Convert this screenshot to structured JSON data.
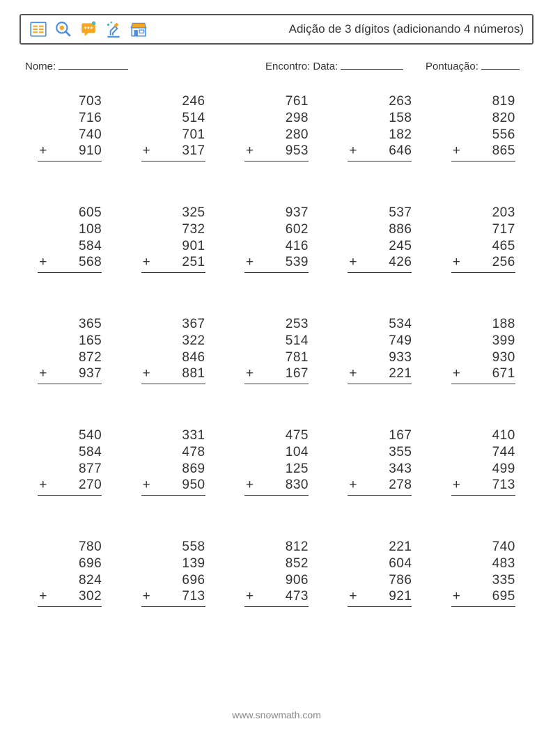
{
  "header": {
    "title": "Adição de 3 dígitos (adicionando 4 números)"
  },
  "labels": {
    "name": "Nome:",
    "date": "Encontro: Data:",
    "score": "Pontuação:"
  },
  "icon_colors": {
    "orange": "#f5a623",
    "blue": "#4a90e2",
    "teal": "#50b5b5",
    "frame": "#555555"
  },
  "style": {
    "font_color": "#333333",
    "border_color": "#555555",
    "background": "#ffffff",
    "problem_font_size": 19,
    "columns": 5,
    "rows": 5,
    "operator": "+"
  },
  "problems": [
    [
      {
        "n": [
          703,
          716,
          740,
          910
        ]
      },
      {
        "n": [
          246,
          514,
          701,
          317
        ]
      },
      {
        "n": [
          761,
          298,
          280,
          953
        ]
      },
      {
        "n": [
          263,
          158,
          182,
          646
        ]
      },
      {
        "n": [
          819,
          820,
          556,
          865
        ]
      }
    ],
    [
      {
        "n": [
          605,
          108,
          584,
          568
        ]
      },
      {
        "n": [
          325,
          732,
          901,
          251
        ]
      },
      {
        "n": [
          937,
          602,
          416,
          539
        ]
      },
      {
        "n": [
          537,
          886,
          245,
          426
        ]
      },
      {
        "n": [
          203,
          717,
          465,
          256
        ]
      }
    ],
    [
      {
        "n": [
          365,
          165,
          872,
          937
        ]
      },
      {
        "n": [
          367,
          322,
          846,
          881
        ]
      },
      {
        "n": [
          253,
          514,
          781,
          167
        ]
      },
      {
        "n": [
          534,
          749,
          933,
          221
        ]
      },
      {
        "n": [
          188,
          399,
          930,
          671
        ]
      }
    ],
    [
      {
        "n": [
          540,
          584,
          877,
          270
        ]
      },
      {
        "n": [
          331,
          478,
          869,
          950
        ]
      },
      {
        "n": [
          475,
          104,
          125,
          830
        ]
      },
      {
        "n": [
          167,
          355,
          343,
          278
        ]
      },
      {
        "n": [
          410,
          744,
          499,
          713
        ]
      }
    ],
    [
      {
        "n": [
          780,
          696,
          824,
          302
        ]
      },
      {
        "n": [
          558,
          139,
          696,
          713
        ]
      },
      {
        "n": [
          812,
          852,
          906,
          473
        ]
      },
      {
        "n": [
          221,
          604,
          786,
          921
        ]
      },
      {
        "n": [
          740,
          483,
          335,
          695
        ]
      }
    ]
  ],
  "footer": "www.snowmath.com"
}
